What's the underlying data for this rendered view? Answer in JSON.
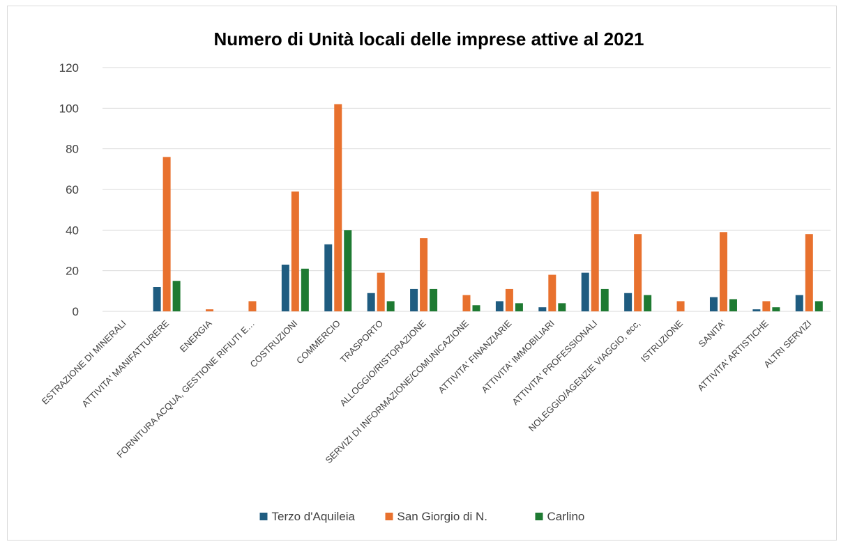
{
  "chart_data": {
    "type": "bar",
    "title": "Numero di Unità locali delle imprese attive al 2021",
    "xlabel": "",
    "ylabel": "",
    "ylim": [
      0,
      120
    ],
    "yticks": [
      0,
      20,
      40,
      60,
      80,
      100,
      120
    ],
    "grid": true,
    "legend_position": "bottom",
    "categories": [
      "ESTRAZIONE DI MINERALI",
      "ATTIVITA' MANIFATTURERE",
      "ENERGIA",
      "FORNITURA ACQUA, GESTIONE RIFIUTI E…",
      "COSTRUZIONI",
      "COMMERCIO",
      "TRASPORTO",
      "ALLOGGIO/RISTORAZIONE",
      "SERVIZI DI INFORMAZIONE/COMUNICAZIONE",
      "ATTIVITA' FINANZIARIE",
      "ATTIVITA' IMMOBILIARI",
      "ATTIVITA' PROFESSIONALI",
      "NOLEGGIO/AGENZIE VIAGGIO, ecc,",
      "ISTRUZIONE",
      "SANITA'",
      "ATTIVITA' ARTISTICHE",
      "ALTRI SERVIZI"
    ],
    "series": [
      {
        "name": "Terzo d'Aquileia",
        "color": "#1f5c80",
        "values": [
          0,
          12,
          0,
          0,
          23,
          33,
          9,
          11,
          0,
          5,
          2,
          19,
          9,
          0,
          7,
          1,
          8
        ]
      },
      {
        "name": "San Giorgio di N.",
        "color": "#e8712e",
        "values": [
          0,
          76,
          1,
          5,
          59,
          102,
          19,
          36,
          8,
          11,
          18,
          59,
          38,
          5,
          39,
          5,
          38
        ]
      },
      {
        "name": "Carlino",
        "color": "#1e7a32",
        "values": [
          0,
          15,
          0,
          0,
          21,
          40,
          5,
          11,
          3,
          4,
          4,
          11,
          8,
          0,
          6,
          2,
          5
        ]
      }
    ]
  }
}
